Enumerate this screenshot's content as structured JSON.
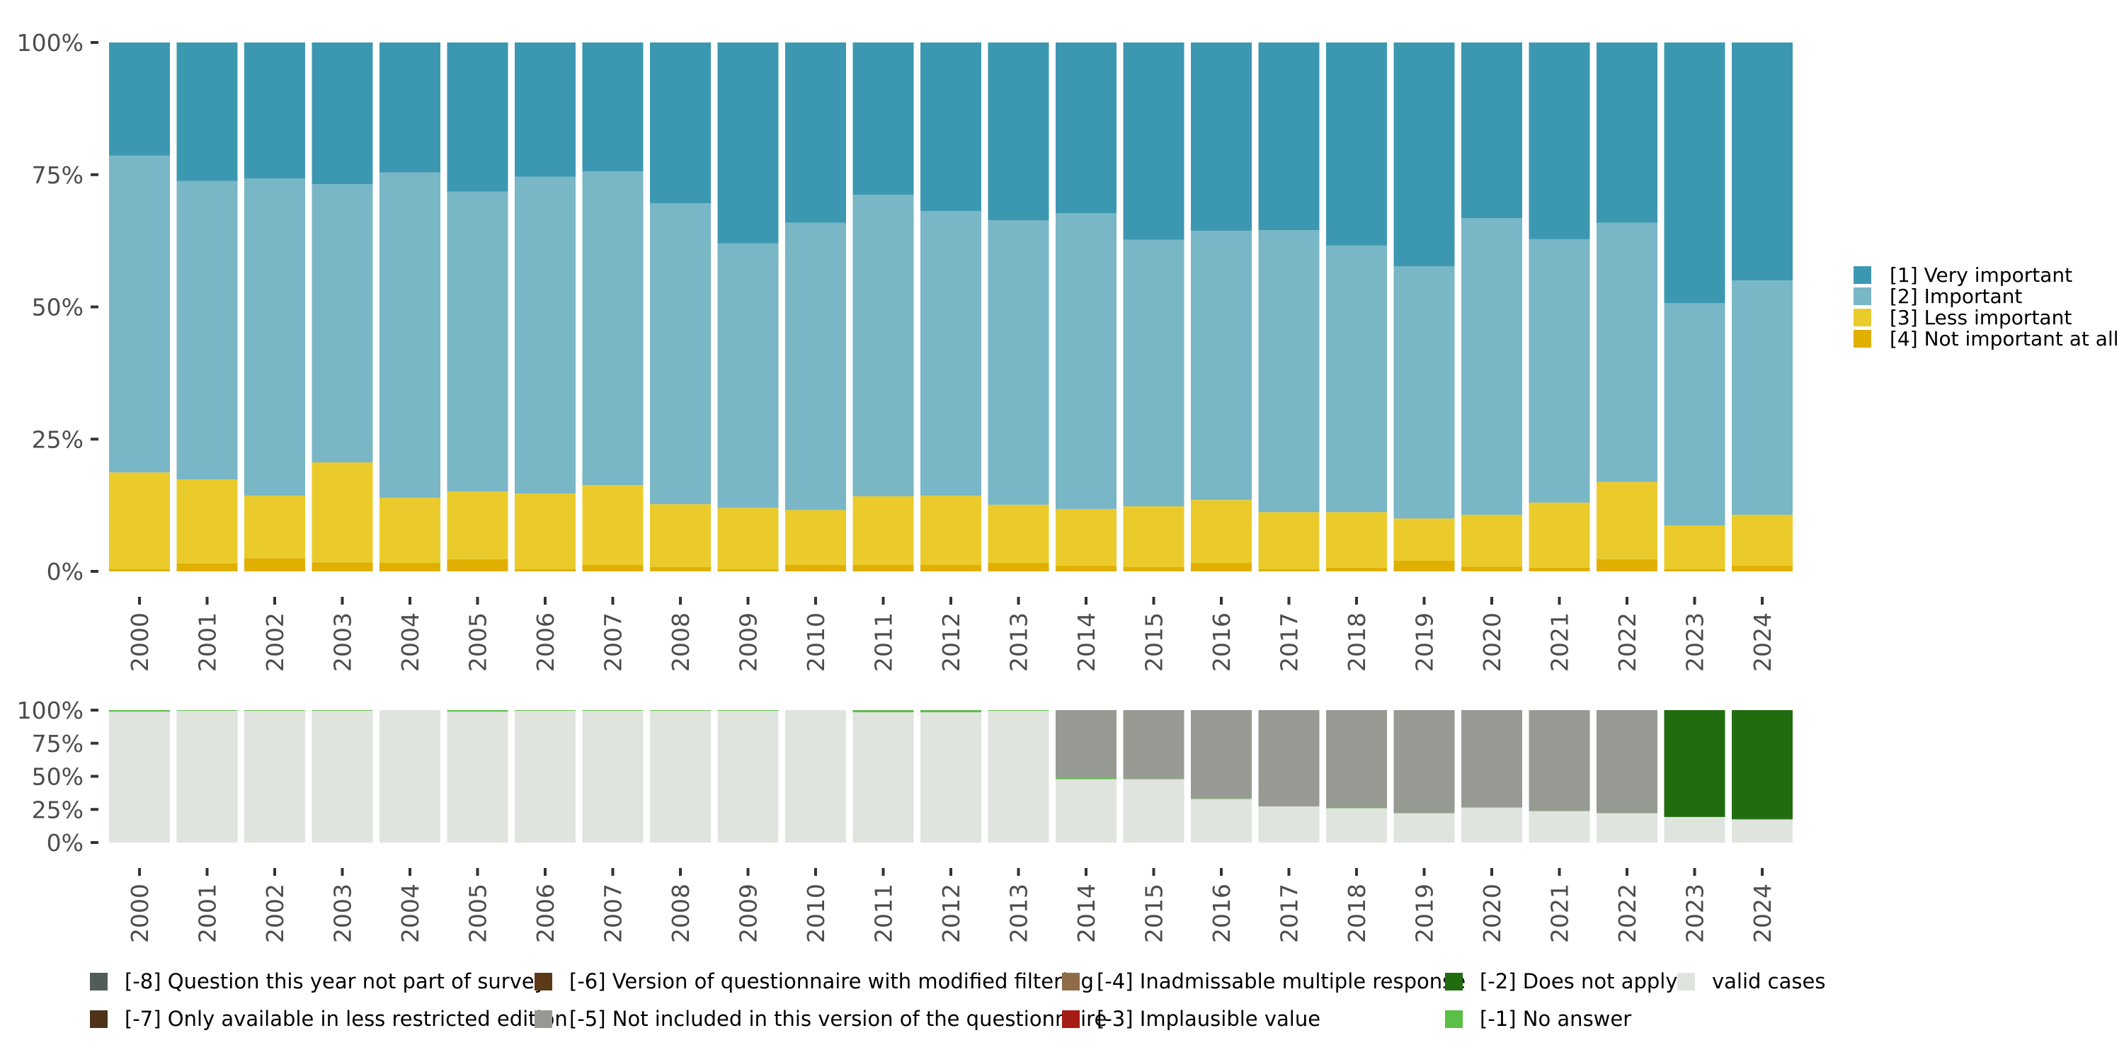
{
  "chart_data": [
    {
      "type": "bar",
      "stacked": true,
      "percent": true,
      "title": "",
      "xlabel": "",
      "ylabel": "",
      "ylim": [
        0,
        100
      ],
      "y_ticks": [
        "0%",
        "25%",
        "50%",
        "75%",
        "100%"
      ],
      "y_tick_values": [
        0,
        25,
        50,
        75,
        100
      ],
      "categories": [
        "2000",
        "2001",
        "2002",
        "2003",
        "2004",
        "2005",
        "2006",
        "2007",
        "2008",
        "2009",
        "2010",
        "2011",
        "2012",
        "2013",
        "2014",
        "2015",
        "2016",
        "2017",
        "2018",
        "2019",
        "2020",
        "2021",
        "2022",
        "2023",
        "2024"
      ],
      "legend_position": "right",
      "stack_order_bottom_to_top": [
        "[4] Not important at all",
        "[3] Less important",
        "[2] Important",
        "[1] Very important"
      ],
      "series": [
        {
          "name": "[1] Very important",
          "color": "#3C98B1",
          "values": [
            21.4,
            26.2,
            25.7,
            26.8,
            24.6,
            28.2,
            25.4,
            24.4,
            30.4,
            38.0,
            34.1,
            28.8,
            31.9,
            33.6,
            32.3,
            37.3,
            35.6,
            35.5,
            38.4,
            42.3,
            33.2,
            37.2,
            34.1,
            49.3,
            45.0
          ]
        },
        {
          "name": "[2] Important",
          "color": "#79B6C6",
          "values": [
            59.9,
            56.4,
            60.0,
            52.6,
            61.5,
            56.7,
            59.9,
            59.3,
            56.9,
            50.0,
            54.3,
            57.0,
            53.8,
            53.8,
            55.9,
            50.4,
            50.9,
            53.3,
            50.4,
            47.7,
            56.1,
            49.8,
            49.0,
            42.0,
            44.3
          ]
        },
        {
          "name": "[3] Less important",
          "color": "#EACB2B",
          "values": [
            18.3,
            15.9,
            11.8,
            18.9,
            12.3,
            12.8,
            14.3,
            15.1,
            11.9,
            11.6,
            10.4,
            13.0,
            13.1,
            11.0,
            10.7,
            11.5,
            11.9,
            10.8,
            10.5,
            8.0,
            9.8,
            12.3,
            14.6,
            8.3,
            9.6
          ]
        },
        {
          "name": "[4] Not important at all",
          "color": "#E0AF00",
          "values": [
            0.4,
            1.5,
            2.5,
            1.7,
            1.6,
            2.3,
            0.4,
            1.2,
            0.8,
            0.4,
            1.2,
            1.2,
            1.2,
            1.6,
            1.1,
            0.8,
            1.6,
            0.4,
            0.7,
            2.0,
            0.9,
            0.7,
            2.3,
            0.4,
            1.1
          ]
        }
      ]
    },
    {
      "type": "bar",
      "stacked": true,
      "percent": true,
      "title": "",
      "xlabel": "",
      "ylabel": "",
      "ylim": [
        0,
        100
      ],
      "y_ticks": [
        "0%",
        "25%",
        "50%",
        "75%",
        "100%"
      ],
      "y_tick_values": [
        0,
        25,
        50,
        75,
        100
      ],
      "categories": [
        "2000",
        "2001",
        "2002",
        "2003",
        "2004",
        "2005",
        "2006",
        "2007",
        "2008",
        "2009",
        "2010",
        "2011",
        "2012",
        "2013",
        "2014",
        "2015",
        "2016",
        "2017",
        "2018",
        "2019",
        "2020",
        "2021",
        "2022",
        "2023",
        "2024"
      ],
      "legend_position": "bottom",
      "stack_order_bottom_to_top": [
        "valid cases",
        "[-1] No answer",
        "[-5] Not included in this version of the questionnaire",
        "[-2] Does not apply"
      ],
      "series": [
        {
          "name": "valid cases",
          "color": "#E0E4DF",
          "values": [
            98.9,
            99.5,
            99.5,
            99.5,
            100,
            98.9,
            99.5,
            99.5,
            99.5,
            99.5,
            100,
            98.4,
            98.4,
            99.5,
            47.8,
            47.8,
            32.8,
            27.3,
            25.8,
            22.1,
            26.4,
            23.7,
            22.1,
            19.3,
            17.3
          ]
        },
        {
          "name": "[-1] No answer",
          "color": "#5ABF45",
          "values": [
            1.1,
            0.5,
            0.5,
            0.5,
            0,
            1.1,
            0.5,
            0.5,
            0.5,
            0.5,
            0,
            1.6,
            1.6,
            0.5,
            0.9,
            0.4,
            0.3,
            0,
            0.3,
            0.3,
            0.3,
            0.3,
            0.3,
            0,
            0.4
          ]
        },
        {
          "name": "[-5] Not included in this version of the questionnaire",
          "color": "#979A92",
          "values": [
            0,
            0,
            0,
            0,
            0,
            0,
            0,
            0,
            0,
            0,
            0,
            0,
            0,
            0,
            51.3,
            51.8,
            66.9,
            72.7,
            73.9,
            77.6,
            73.3,
            76.0,
            77.6,
            0,
            0
          ]
        },
        {
          "name": "[-2] Does not apply",
          "color": "#226C10",
          "values": [
            0,
            0,
            0,
            0,
            0,
            0,
            0,
            0,
            0,
            0,
            0,
            0,
            0,
            0,
            0,
            0,
            0,
            0,
            0,
            0,
            0,
            0,
            0,
            80.7,
            82.3
          ]
        }
      ],
      "legend": [
        {
          "label": "[-8] Question this year not part of survey",
          "color": "#535D58"
        },
        {
          "label": "[-7] Only available in less restricted edition",
          "color": "#4F3318"
        },
        {
          "label": "[-6] Version of questionnaire with modified filtering",
          "color": "#5C3A18"
        },
        {
          "label": "[-5] Not included in this version of the questionnaire",
          "color": "#979A92"
        },
        {
          "label": "[-4] Inadmissable multiple response",
          "color": "#8F6C48"
        },
        {
          "label": "[-3] Implausible value",
          "color": "#A61D15"
        },
        {
          "label": "[-2] Does not apply",
          "color": "#226C10"
        },
        {
          "label": "[-1] No answer",
          "color": "#5ABF45"
        },
        {
          "label": "valid cases",
          "color": "#E0E4DF"
        }
      ]
    }
  ]
}
